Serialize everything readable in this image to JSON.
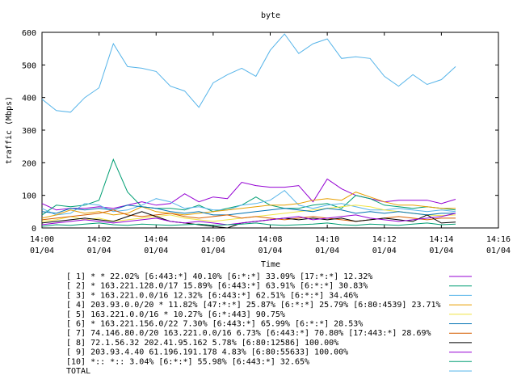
{
  "chart_data": {
    "type": "line",
    "title": "byte",
    "xlabel": "Time",
    "ylabel": "traffic (Mbps)",
    "ylim": [
      0,
      600
    ],
    "y_ticks": [
      "0",
      "100",
      "200",
      "300",
      "400",
      "500",
      "600"
    ],
    "x_ticks": [
      {
        "time": "14:00",
        "date": "01/04"
      },
      {
        "time": "14:02",
        "date": "01/04"
      },
      {
        "time": "14:04",
        "date": "01/04"
      },
      {
        "time": "14:06",
        "date": "01/04"
      },
      {
        "time": "14:08",
        "date": "01/04"
      },
      {
        "time": "14:10",
        "date": "01/04"
      },
      {
        "time": "14:12",
        "date": "01/04"
      },
      {
        "time": "14:14",
        "date": "01/04"
      },
      {
        "time": "14:16",
        "date": "01/04"
      }
    ],
    "xlim_minutes": [
      0,
      16
    ],
    "x_minutes": [
      0,
      0.5,
      1,
      1.5,
      2,
      2.5,
      3,
      3.5,
      4,
      4.5,
      5,
      5.5,
      6,
      6.5,
      7,
      7.5,
      8,
      8.5,
      9,
      9.5,
      10,
      10.5,
      11,
      11.5,
      12,
      12.5,
      13,
      13.5,
      14,
      14.5
    ],
    "series": [
      {
        "name": "[ 1] * * 22.02%  [6:443:*] 40.10% [6:*:*] 33.09% [17:*:*] 12.32%",
        "color": "#9400d3",
        "values": [
          75,
          55,
          60,
          60,
          65,
          60,
          70,
          80,
          70,
          75,
          105,
          80,
          95,
          90,
          140,
          130,
          125,
          125,
          130,
          80,
          150,
          120,
          100,
          90,
          80,
          85,
          85,
          85,
          75,
          88
        ]
      },
      {
        "name": "[ 2] * 163.221.128.0/17 15.89%  [6:443:*] 63.91% [6:*:*] 30.83%",
        "color": "#009e73",
        "values": [
          40,
          70,
          65,
          70,
          85,
          210,
          110,
          65,
          60,
          60,
          55,
          70,
          50,
          60,
          70,
          95,
          70,
          60,
          60,
          70,
          75,
          60,
          100,
          90,
          70,
          65,
          60,
          65,
          60,
          55
        ]
      },
      {
        "name": "[ 3] * 163.221.0.0/16 12.32%  [6:443:*] 62.51% [6:*:*] 34.46%",
        "color": "#56b4e9",
        "values": [
          60,
          40,
          45,
          75,
          70,
          50,
          55,
          70,
          90,
          80,
          60,
          65,
          55,
          55,
          70,
          75,
          85,
          115,
          70,
          60,
          70,
          75,
          65,
          55,
          55,
          60,
          55,
          50,
          55,
          50
        ]
      },
      {
        "name": "[ 4] 203.93.0.0/20 * 11.82%  [47:*:*] 25.87% [6:*:*] 25.79% [6:80:4539] 23.71%",
        "color": "#e69f00",
        "values": [
          30,
          40,
          55,
          45,
          50,
          40,
          45,
          65,
          50,
          45,
          40,
          45,
          50,
          55,
          60,
          65,
          70,
          70,
          75,
          85,
          90,
          85,
          110,
          95,
          80,
          70,
          70,
          65,
          60,
          60
        ]
      },
      {
        "name": "[ 5] 163.221.0.0/16 * 10.27%  [6:*:443] 90.75%",
        "color": "#f0e442",
        "values": [
          20,
          25,
          35,
          25,
          30,
          20,
          25,
          30,
          35,
          40,
          30,
          25,
          20,
          25,
          30,
          35,
          40,
          45,
          50,
          55,
          60,
          65,
          70,
          65,
          55,
          50,
          45,
          40,
          38,
          40
        ]
      },
      {
        "name": "[ 6] * 163.221.156.0/22 7.30%  [6:443:*] 65.99% [6:*:*] 28.53%",
        "color": "#0072b2",
        "values": [
          50,
          45,
          60,
          55,
          60,
          55,
          70,
          65,
          60,
          50,
          45,
          50,
          40,
          40,
          45,
          50,
          55,
          60,
          55,
          50,
          60,
          55,
          45,
          50,
          45,
          50,
          45,
          40,
          45,
          45
        ]
      },
      {
        "name": "[ 7] 74.146.80.0/20 163.221.0.0/16 6.73%  [6:443:*] 70.80% [17:443:*] 28.69%",
        "color": "#d55e00",
        "values": [
          25,
          30,
          35,
          40,
          45,
          55,
          40,
          35,
          40,
          45,
          35,
          30,
          35,
          40,
          30,
          35,
          30,
          25,
          30,
          35,
          30,
          25,
          20,
          25,
          30,
          35,
          30,
          25,
          30,
          30
        ]
      },
      {
        "name": "[ 8] 72.1.56.32 202.41.95.162 5.78%  [6:80:12586] 100.00%",
        "color": "#000000",
        "values": [
          15,
          20,
          25,
          30,
          25,
          20,
          35,
          50,
          35,
          20,
          15,
          10,
          5,
          0,
          15,
          20,
          25,
          30,
          25,
          30,
          25,
          30,
          20,
          25,
          30,
          25,
          20,
          40,
          15,
          18
        ]
      },
      {
        "name": "[ 9] 203.93.4.40 61.196.191.178 4.83%  [6:80:55633] 100.00%",
        "color": "#9400d3",
        "values": [
          10,
          15,
          20,
          25,
          20,
          15,
          20,
          25,
          30,
          20,
          15,
          20,
          15,
          10,
          15,
          20,
          25,
          30,
          35,
          25,
          30,
          35,
          40,
          30,
          25,
          20,
          25,
          30,
          35,
          45
        ]
      },
      {
        "name": "[10] *:: *:: 3.04%  [6:*:*] 55.98% [6:443:*] 32.65%",
        "color": "#009e73",
        "values": [
          5,
          10,
          8,
          12,
          15,
          10,
          8,
          12,
          10,
          8,
          10,
          12,
          8,
          10,
          12,
          15,
          10,
          8,
          10,
          12,
          15,
          10,
          8,
          12,
          10,
          8,
          12,
          15,
          10,
          12
        ]
      },
      {
        "name": "TOTAL",
        "color": "#56b4e9",
        "values": [
          395,
          360,
          355,
          400,
          430,
          565,
          495,
          490,
          480,
          435,
          420,
          370,
          445,
          470,
          490,
          465,
          545,
          595,
          535,
          565,
          580,
          520,
          525,
          520,
          465,
          435,
          470,
          440,
          455,
          495
        ]
      }
    ]
  }
}
